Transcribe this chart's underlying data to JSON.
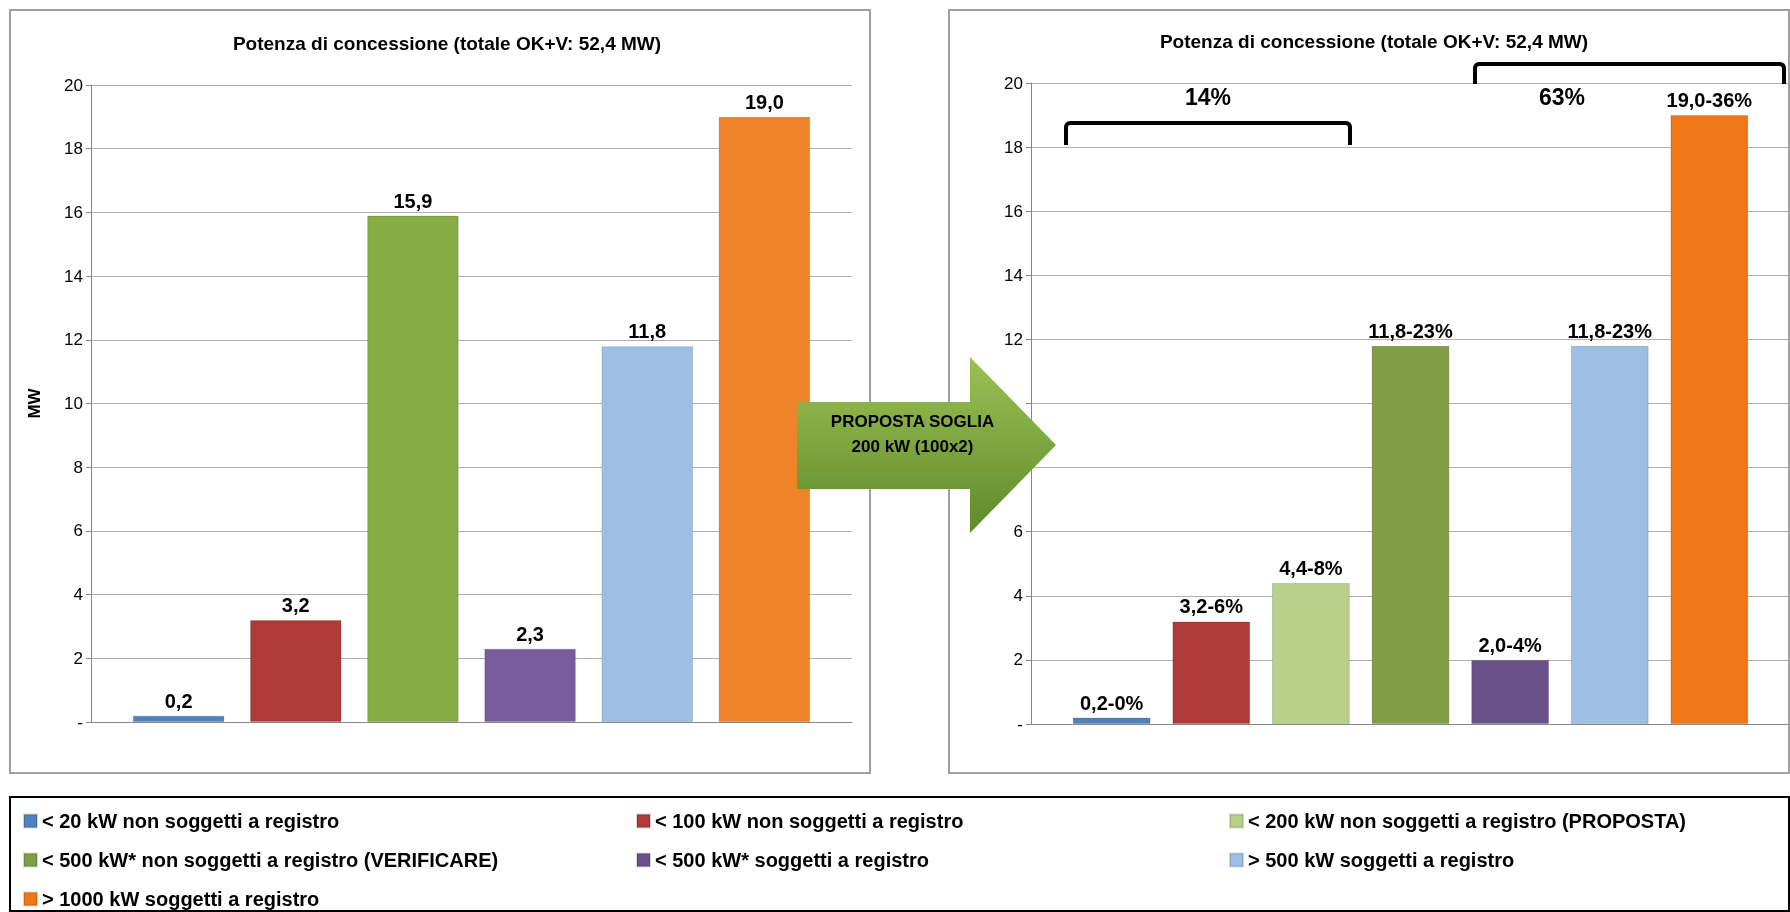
{
  "chart_data": [
    {
      "type": "bar",
      "title": "Potenza di concessione (totale OK+V: 52,4 MW)",
      "ylabel": "MW",
      "categories": [
        null
      ],
      "series": [
        {
          "color": "#4f81bd",
          "values": [
            0.2
          ],
          "value_labels": [
            "0,2"
          ]
        },
        {
          "color": "#b03a37",
          "values": [
            3.2
          ],
          "value_labels": [
            "3,2"
          ]
        },
        {
          "color": "#86ad43",
          "values": [
            15.9
          ],
          "value_labels": [
            "15,9"
          ]
        },
        {
          "color": "#7a5c9c",
          "values": [
            2.3
          ],
          "value_labels": [
            "2,3"
          ]
        },
        {
          "color": "#9dbfe4",
          "values": [
            11.8
          ],
          "value_labels": [
            "11,8"
          ]
        },
        {
          "color": "#ee8427",
          "values": [
            19.0
          ],
          "value_labels": [
            "19,0"
          ]
        }
      ],
      "ylim": [
        0,
        20
      ],
      "yticks": [
        {
          "value": 0,
          "label": "-"
        },
        2,
        4,
        6,
        8,
        10,
        12,
        14,
        16,
        18,
        20
      ],
      "grid": "y",
      "legend": false,
      "annotations": [
        "PROPOSTA SOGLIA 200 kW (100x2)"
      ]
    },
    {
      "type": "bar",
      "title": "Potenza di concessione (totale OK+V: 52,4 MW)",
      "categories": [
        null
      ],
      "series": [
        {
          "name": "< 20 kW non soggetti a registro",
          "color": "#4f81bd",
          "values": [
            0.2
          ],
          "value_labels": [
            "0,2-0%"
          ]
        },
        {
          "name": "< 100 kW non soggetti a registro",
          "color": "#b03a37",
          "values": [
            3.2
          ],
          "value_labels": [
            "3,2-6%"
          ]
        },
        {
          "name": "< 200 kW non soggetti a registro (PROPOSTA)",
          "color": "#b8d08a",
          "values": [
            4.4
          ],
          "value_labels": [
            "4,4-8%"
          ]
        },
        {
          "name": "< 500 kW* non soggetti a registro (VERIFICARE)",
          "color": "#7f9e45",
          "values": [
            11.8
          ],
          "value_labels": [
            "11,8-23%"
          ]
        },
        {
          "name": "< 500 kW* soggetti a registro",
          "color": "#6a5088",
          "values": [
            2.0
          ],
          "value_labels": [
            "2,0-4%"
          ]
        },
        {
          "name": "> 500 kW soggetti a registro",
          "color": "#9dbfe4",
          "values": [
            11.8
          ],
          "value_labels": [
            "11,8-23%"
          ]
        },
        {
          "name": "> 1000 kW soggetti a registro",
          "color": "#f07616",
          "values": [
            19.0
          ],
          "value_labels": [
            "19,0-36%"
          ]
        }
      ],
      "ylim": [
        0,
        20
      ],
      "yticks": [
        {
          "value": 0,
          "label": "-"
        },
        2,
        4,
        6,
        {
          "value": 8,
          "label": null
        },
        {
          "value": 10,
          "label": null
        },
        12,
        14,
        16,
        18,
        20
      ],
      "grid": "y",
      "legend": "bottom",
      "annotations": [
        "14%",
        "63%"
      ]
    }
  ]
}
